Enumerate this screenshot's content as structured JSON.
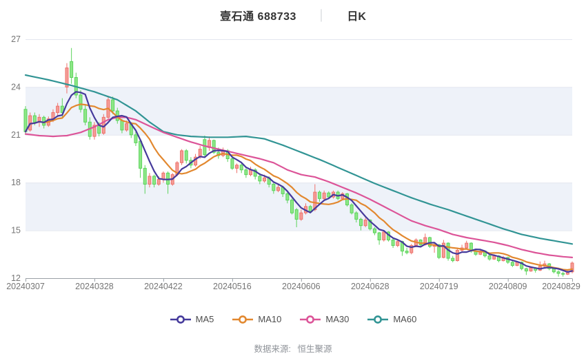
{
  "header": {
    "stock_name_code": "壹石通 688733",
    "separator": "│",
    "period_label": "日K"
  },
  "legend": {
    "items": [
      {
        "label": "MA5",
        "color": "#453a9b"
      },
      {
        "label": "MA10",
        "color": "#e2882f"
      },
      {
        "label": "MA30",
        "color": "#dc5498"
      },
      {
        "label": "MA60",
        "color": "#319494"
      }
    ]
  },
  "footer": {
    "source_label": "数据来源:",
    "source_value": "恒生聚源"
  },
  "chart_data": {
    "type": "candlestick",
    "title": "壹石通 688733 日K",
    "y_range": [
      12,
      27
    ],
    "y_ticks": [
      27,
      24,
      21,
      18,
      15,
      12
    ],
    "shaded_bands": [
      [
        21,
        24
      ],
      [
        15,
        18
      ]
    ],
    "x_tick_labels": [
      "20240307",
      "20240328",
      "20240422",
      "20240516",
      "20240606",
      "20240628",
      "20240719",
      "20240809",
      "20240829"
    ],
    "x_tick_indices": [
      0,
      15,
      30,
      45,
      60,
      75,
      90,
      105,
      119
    ],
    "grid_on": true,
    "legend_position": "bottom",
    "colors": {
      "up_fill": "#f49d97",
      "up_stroke": "#ee716a",
      "down_fill": "#8ee787",
      "down_stroke": "#5bd35b",
      "band": "#eef2f9",
      "grid": "#e3e6ef",
      "axis": "#9aa0a6",
      "label": "#757575"
    },
    "candles": [
      [
        22.6,
        22.8,
        21.0,
        21.2
      ],
      [
        21.3,
        22.4,
        21.2,
        22.2
      ],
      [
        22.2,
        22.4,
        21.6,
        21.8
      ],
      [
        21.8,
        22.3,
        21.5,
        22.1
      ],
      [
        22.1,
        22.2,
        21.4,
        21.6
      ],
      [
        21.6,
        22.15,
        21.5,
        22.0
      ],
      [
        22.0,
        22.6,
        21.8,
        22.4
      ],
      [
        22.4,
        23.0,
        22.2,
        22.8
      ],
      [
        22.8,
        23.3,
        22.1,
        22.4
      ],
      [
        24.0,
        25.5,
        23.6,
        25.2
      ],
      [
        25.6,
        26.45,
        24.2,
        24.6
      ],
      [
        24.6,
        24.9,
        23.3,
        23.5
      ],
      [
        23.5,
        23.8,
        22.4,
        22.6
      ],
      [
        22.6,
        22.9,
        21.6,
        21.8
      ],
      [
        21.8,
        22.1,
        20.7,
        20.9
      ],
      [
        20.9,
        21.8,
        20.7,
        21.6
      ],
      [
        21.6,
        21.8,
        20.9,
        21.1
      ],
      [
        21.1,
        22.3,
        21.0,
        22.1
      ],
      [
        22.1,
        23.4,
        22.0,
        23.2
      ],
      [
        23.2,
        23.4,
        22.3,
        22.5
      ],
      [
        22.5,
        22.7,
        21.7,
        21.9
      ],
      [
        21.9,
        22.0,
        21.1,
        21.3
      ],
      [
        21.3,
        21.9,
        21.2,
        21.7
      ],
      [
        21.7,
        21.8,
        20.8,
        21.0
      ],
      [
        21.0,
        21.2,
        20.3,
        20.5
      ],
      [
        20.6,
        20.7,
        18.3,
        18.9
      ],
      [
        18.9,
        19.1,
        17.3,
        17.9
      ],
      [
        17.9,
        18.6,
        17.7,
        18.4
      ],
      [
        18.4,
        18.5,
        17.7,
        17.9
      ],
      [
        17.9,
        18.4,
        17.8,
        18.2
      ],
      [
        18.2,
        18.7,
        18.0,
        18.6
      ],
      [
        18.6,
        18.7,
        17.3,
        17.9
      ],
      [
        17.9,
        18.6,
        17.8,
        18.5
      ],
      [
        18.5,
        19.35,
        18.4,
        19.25
      ],
      [
        19.25,
        20.1,
        19.1,
        20.0
      ],
      [
        20.0,
        20.1,
        19.2,
        19.4
      ],
      [
        19.4,
        19.6,
        18.9,
        19.1
      ],
      [
        19.1,
        19.8,
        19.0,
        19.6
      ],
      [
        19.6,
        20.3,
        19.5,
        20.1
      ],
      [
        20.7,
        20.95,
        19.6,
        19.75
      ],
      [
        20.2,
        20.9,
        20.0,
        20.65
      ],
      [
        20.65,
        20.7,
        19.8,
        19.9
      ],
      [
        19.9,
        20.2,
        19.5,
        19.7
      ],
      [
        19.7,
        20.2,
        19.6,
        20.0
      ],
      [
        20.0,
        20.1,
        19.3,
        19.5
      ],
      [
        19.5,
        19.7,
        18.8,
        18.9
      ],
      [
        18.9,
        19.2,
        18.6,
        19.1
      ],
      [
        19.1,
        19.2,
        18.6,
        18.8
      ],
      [
        18.8,
        18.9,
        18.3,
        18.5
      ],
      [
        18.5,
        19.0,
        18.4,
        18.8
      ],
      [
        18.8,
        18.9,
        18.2,
        18.4
      ],
      [
        18.4,
        18.6,
        17.9,
        18.1
      ],
      [
        18.1,
        18.5,
        18.0,
        18.3
      ],
      [
        18.3,
        18.4,
        17.7,
        17.9
      ],
      [
        17.9,
        18.0,
        17.3,
        17.5
      ],
      [
        17.5,
        17.9,
        17.4,
        17.7
      ],
      [
        17.7,
        17.8,
        17.1,
        17.3
      ],
      [
        17.3,
        17.4,
        16.7,
        16.9
      ],
      [
        16.9,
        17.0,
        16.0,
        16.1
      ],
      [
        16.3,
        16.4,
        15.2,
        15.7
      ],
      [
        15.7,
        16.3,
        15.6,
        16.1
      ],
      [
        16.1,
        16.7,
        16.0,
        16.5
      ],
      [
        16.5,
        16.6,
        16.1,
        16.2
      ],
      [
        16.3,
        17.9,
        16.2,
        17.4
      ],
      [
        17.4,
        17.5,
        16.8,
        17.0
      ],
      [
        17.0,
        17.5,
        16.9,
        17.35
      ],
      [
        17.35,
        17.45,
        17.0,
        17.1
      ],
      [
        17.1,
        17.5,
        17.0,
        17.4
      ],
      [
        17.4,
        17.5,
        16.9,
        17.0
      ],
      [
        17.0,
        17.4,
        16.9,
        17.3
      ],
      [
        17.3,
        17.35,
        16.5,
        16.6
      ],
      [
        16.6,
        16.7,
        16.0,
        16.1
      ],
      [
        16.1,
        16.2,
        15.5,
        15.7
      ],
      [
        15.7,
        15.8,
        15.0,
        15.3
      ],
      [
        15.3,
        15.8,
        15.2,
        15.65
      ],
      [
        15.65,
        15.7,
        15.0,
        15.1
      ],
      [
        15.1,
        15.2,
        14.7,
        14.85
      ],
      [
        14.85,
        14.9,
        14.1,
        14.4
      ],
      [
        14.4,
        15.0,
        14.3,
        14.9
      ],
      [
        14.9,
        14.95,
        14.3,
        14.4
      ],
      [
        14.4,
        14.5,
        13.9,
        14.05
      ],
      [
        14.05,
        14.4,
        13.95,
        14.3
      ],
      [
        14.3,
        14.35,
        13.4,
        13.7
      ],
      [
        13.7,
        13.9,
        13.5,
        13.6
      ],
      [
        13.6,
        14.15,
        13.5,
        14.05
      ],
      [
        14.05,
        14.5,
        13.95,
        14.4
      ],
      [
        14.4,
        14.45,
        14.0,
        14.1
      ],
      [
        14.1,
        14.8,
        14.05,
        14.55
      ],
      [
        14.55,
        14.6,
        13.9,
        14.0
      ],
      [
        14.0,
        14.2,
        13.6,
        14.1
      ],
      [
        14.1,
        14.15,
        13.2,
        13.3
      ],
      [
        13.3,
        14.4,
        13.25,
        14.2
      ],
      [
        14.2,
        14.25,
        13.1,
        13.25
      ],
      [
        13.25,
        13.4,
        13.0,
        13.1
      ],
      [
        13.1,
        13.85,
        13.05,
        13.75
      ],
      [
        13.75,
        14.1,
        13.6,
        13.9
      ],
      [
        13.9,
        14.35,
        13.8,
        14.2
      ],
      [
        14.2,
        14.25,
        13.6,
        13.7
      ],
      [
        13.7,
        13.8,
        13.4,
        13.5
      ],
      [
        13.5,
        13.8,
        13.45,
        13.7
      ],
      [
        13.7,
        13.75,
        13.3,
        13.4
      ],
      [
        13.4,
        13.5,
        13.1,
        13.2
      ],
      [
        13.2,
        13.5,
        13.15,
        13.4
      ],
      [
        13.4,
        13.45,
        13.0,
        13.1
      ],
      [
        13.1,
        13.4,
        13.05,
        13.3
      ],
      [
        13.3,
        13.35,
        12.9,
        13.0
      ],
      [
        13.0,
        13.1,
        12.7,
        12.8
      ],
      [
        12.8,
        13.05,
        12.75,
        13.0
      ],
      [
        13.0,
        13.05,
        12.5,
        12.6
      ],
      [
        12.6,
        12.65,
        12.2,
        12.45
      ],
      [
        12.45,
        12.75,
        12.4,
        12.65
      ],
      [
        12.65,
        12.7,
        12.35,
        12.5
      ],
      [
        12.5,
        13.05,
        12.45,
        12.75
      ],
      [
        12.75,
        13.1,
        12.6,
        12.9
      ],
      [
        12.9,
        12.95,
        12.5,
        12.6
      ],
      [
        12.6,
        12.65,
        12.3,
        12.4
      ],
      [
        12.4,
        12.5,
        12.1,
        12.3
      ],
      [
        12.3,
        12.4,
        12.1,
        12.25
      ],
      [
        12.25,
        12.5,
        12.2,
        12.4
      ],
      [
        12.4,
        13.05,
        12.3,
        12.95
      ]
    ],
    "ma_series": [
      {
        "name": "MA5",
        "color": "#453a9b",
        "window": 5
      },
      {
        "name": "MA10",
        "color": "#e2882f",
        "window": 10
      },
      {
        "name": "MA30",
        "color": "#dc5498",
        "anchors": [
          [
            0,
            21.05
          ],
          [
            3,
            20.95
          ],
          [
            6,
            20.9
          ],
          [
            9,
            20.95
          ],
          [
            12,
            21.15
          ],
          [
            15,
            21.5
          ],
          [
            18,
            21.95
          ],
          [
            20,
            22.1
          ],
          [
            22,
            22.1
          ],
          [
            24,
            21.95
          ],
          [
            27,
            21.55
          ],
          [
            30,
            21.15
          ],
          [
            33,
            20.85
          ],
          [
            36,
            20.55
          ],
          [
            39,
            20.3
          ],
          [
            42,
            20.1
          ],
          [
            45,
            19.9
          ],
          [
            48,
            19.7
          ],
          [
            51,
            19.5
          ],
          [
            54,
            19.25
          ],
          [
            57,
            18.8
          ],
          [
            60,
            18.5
          ],
          [
            63,
            18.35
          ],
          [
            66,
            18.05
          ],
          [
            69,
            17.7
          ],
          [
            72,
            17.35
          ],
          [
            75,
            16.95
          ],
          [
            78,
            16.5
          ],
          [
            81,
            16.05
          ],
          [
            84,
            15.6
          ],
          [
            87,
            15.3
          ],
          [
            90,
            15.05
          ],
          [
            93,
            14.75
          ],
          [
            96,
            14.55
          ],
          [
            99,
            14.4
          ],
          [
            102,
            14.25
          ],
          [
            105,
            14.05
          ],
          [
            108,
            13.8
          ],
          [
            111,
            13.6
          ],
          [
            114,
            13.45
          ],
          [
            117,
            13.35
          ],
          [
            119,
            13.3
          ]
        ]
      },
      {
        "name": "MA60",
        "color": "#319494",
        "anchors": [
          [
            0,
            24.75
          ],
          [
            5,
            24.45
          ],
          [
            10,
            24.1
          ],
          [
            15,
            23.7
          ],
          [
            20,
            23.2
          ],
          [
            24,
            22.5
          ],
          [
            27,
            21.8
          ],
          [
            30,
            21.2
          ],
          [
            33,
            21.0
          ],
          [
            36,
            20.9
          ],
          [
            40,
            20.85
          ],
          [
            44,
            20.85
          ],
          [
            48,
            20.9
          ],
          [
            52,
            20.75
          ],
          [
            56,
            20.35
          ],
          [
            60,
            19.9
          ],
          [
            64,
            19.45
          ],
          [
            68,
            18.95
          ],
          [
            72,
            18.45
          ],
          [
            76,
            17.95
          ],
          [
            80,
            17.5
          ],
          [
            84,
            17.05
          ],
          [
            88,
            16.65
          ],
          [
            92,
            16.3
          ],
          [
            96,
            15.9
          ],
          [
            100,
            15.5
          ],
          [
            104,
            15.1
          ],
          [
            108,
            14.75
          ],
          [
            112,
            14.5
          ],
          [
            116,
            14.3
          ],
          [
            119,
            14.15
          ]
        ]
      }
    ]
  }
}
